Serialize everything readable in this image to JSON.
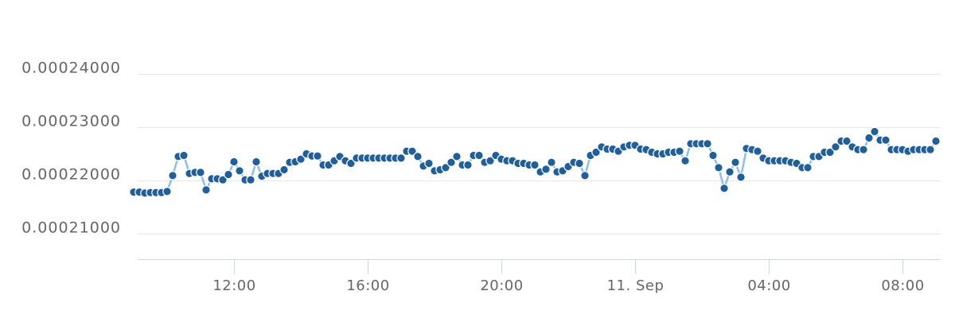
{
  "chart_data": {
    "type": "line",
    "title": "",
    "xlabel": "",
    "ylabel": "",
    "ylim": [
      0.000205,
      0.000251
    ],
    "xlim": [
      0,
      144
    ],
    "grid": true,
    "legend": "none",
    "colors": {
      "line": "#8ebef0",
      "marker": "#1f5f9c",
      "marker_stroke": "#ffffff",
      "grid": "#e6e6e6",
      "axis": "#ccd6eb",
      "label": "#666666"
    },
    "yticks": [
      {
        "value": 0.00021,
        "label": "0.00021000"
      },
      {
        "value": 0.00022,
        "label": "0.00022000"
      },
      {
        "value": 0.00023,
        "label": "0.00023000"
      },
      {
        "value": 0.00024,
        "label": "0.00024000"
      }
    ],
    "xticks": [
      {
        "value": 18,
        "label": "12:00"
      },
      {
        "value": 42,
        "label": "16:00"
      },
      {
        "value": 66,
        "label": "20:00"
      },
      {
        "value": 90,
        "label": "11. Sep"
      },
      {
        "value": 114,
        "label": "04:00"
      },
      {
        "value": 138,
        "label": "08:00"
      }
    ],
    "series": [
      {
        "values": [
          0.0002178,
          0.0002178,
          0.0002176,
          0.0002177,
          0.0002177,
          0.0002177,
          0.0002179,
          0.0002209,
          0.0002245,
          0.0002247,
          0.0002213,
          0.0002215,
          0.0002215,
          0.0002182,
          0.0002203,
          0.0002203,
          0.0002201,
          0.0002211,
          0.0002235,
          0.0002218,
          0.0002201,
          0.0002201,
          0.0002235,
          0.0002208,
          0.0002213,
          0.0002213,
          0.0002213,
          0.000222,
          0.0002234,
          0.0002235,
          0.000224,
          0.000225,
          0.0002246,
          0.0002246,
          0.0002229,
          0.0002229,
          0.0002237,
          0.0002245,
          0.0002237,
          0.0002232,
          0.0002242,
          0.0002242,
          0.0002242,
          0.0002242,
          0.0002242,
          0.0002242,
          0.0002242,
          0.0002242,
          0.0002242,
          0.0002255,
          0.0002255,
          0.0002245,
          0.0002227,
          0.0002232,
          0.0002218,
          0.000222,
          0.0002224,
          0.0002234,
          0.0002245,
          0.0002229,
          0.0002229,
          0.0002247,
          0.0002247,
          0.0002234,
          0.0002237,
          0.0002247,
          0.000224,
          0.0002237,
          0.0002237,
          0.0002232,
          0.0002232,
          0.0002229,
          0.0002229,
          0.0002216,
          0.0002221,
          0.0002234,
          0.0002216,
          0.0002218,
          0.0002226,
          0.0002234,
          0.0002232,
          0.0002209,
          0.0002247,
          0.0002253,
          0.0002263,
          0.0002259,
          0.0002259,
          0.0002255,
          0.0002263,
          0.0002266,
          0.0002266,
          0.0002259,
          0.0002258,
          0.0002253,
          0.000225,
          0.000225,
          0.0002253,
          0.0002253,
          0.0002255,
          0.0002237,
          0.0002269,
          0.0002269,
          0.0002269,
          0.0002269,
          0.0002247,
          0.0002224,
          0.0002185,
          0.0002216,
          0.0002234,
          0.0002206,
          0.000226,
          0.0002258,
          0.0002255,
          0.0002242,
          0.0002237,
          0.0002237,
          0.0002237,
          0.0002237,
          0.0002234,
          0.0002232,
          0.0002224,
          0.0002224,
          0.0002245,
          0.0002245,
          0.0002253,
          0.0002253,
          0.0002263,
          0.0002274,
          0.0002274,
          0.0002263,
          0.0002258,
          0.0002258,
          0.000228,
          0.0002292,
          0.0002276,
          0.0002276,
          0.0002258,
          0.0002258,
          0.0002258,
          0.0002255,
          0.0002258,
          0.0002258,
          0.0002258,
          0.0002258,
          0.0002274
        ]
      }
    ]
  }
}
